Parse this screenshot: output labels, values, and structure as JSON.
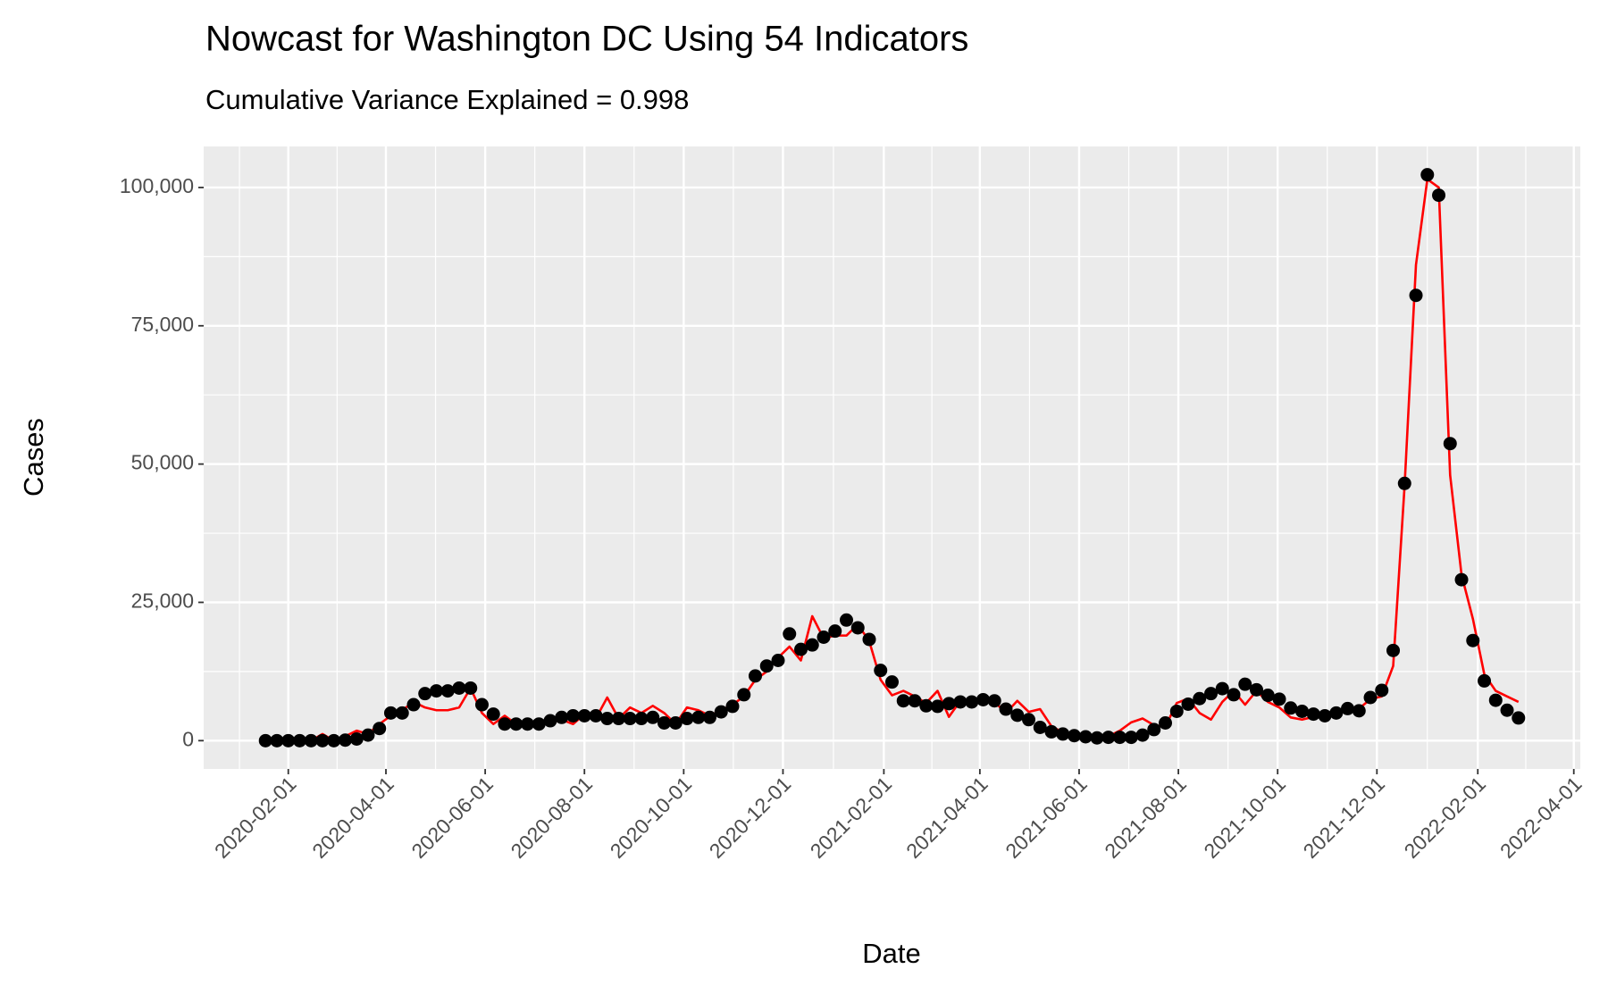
{
  "chart_data": {
    "type": "line",
    "title": "Nowcast for Washington DC Using 54 Indicators",
    "subtitle": "Cumulative Variance Explained = 0.998",
    "x_label": "Date",
    "y_label": "Cases",
    "x": [
      "2020-01-18",
      "2020-01-25",
      "2020-02-01",
      "2020-02-08",
      "2020-02-15",
      "2020-02-22",
      "2020-02-29",
      "2020-03-07",
      "2020-03-14",
      "2020-03-21",
      "2020-03-28",
      "2020-04-04",
      "2020-04-11",
      "2020-04-18",
      "2020-04-25",
      "2020-05-02",
      "2020-05-09",
      "2020-05-16",
      "2020-05-23",
      "2020-05-30",
      "2020-06-06",
      "2020-06-13",
      "2020-06-20",
      "2020-06-27",
      "2020-07-04",
      "2020-07-11",
      "2020-07-18",
      "2020-07-25",
      "2020-08-01",
      "2020-08-08",
      "2020-08-15",
      "2020-08-22",
      "2020-08-29",
      "2020-09-05",
      "2020-09-12",
      "2020-09-19",
      "2020-09-26",
      "2020-10-03",
      "2020-10-10",
      "2020-10-17",
      "2020-10-24",
      "2020-10-31",
      "2020-11-07",
      "2020-11-14",
      "2020-11-21",
      "2020-11-28",
      "2020-12-05",
      "2020-12-12",
      "2020-12-19",
      "2020-12-26",
      "2021-01-02",
      "2021-01-09",
      "2021-01-16",
      "2021-01-23",
      "2021-01-30",
      "2021-02-06",
      "2021-02-13",
      "2021-02-20",
      "2021-02-27",
      "2021-03-06",
      "2021-03-13",
      "2021-03-20",
      "2021-03-27",
      "2021-04-03",
      "2021-04-10",
      "2021-04-17",
      "2021-04-24",
      "2021-05-01",
      "2021-05-08",
      "2021-05-15",
      "2021-05-22",
      "2021-05-29",
      "2021-06-05",
      "2021-06-12",
      "2021-06-19",
      "2021-06-26",
      "2021-07-03",
      "2021-07-10",
      "2021-07-17",
      "2021-07-24",
      "2021-07-31",
      "2021-08-07",
      "2021-08-14",
      "2021-08-21",
      "2021-08-28",
      "2021-09-04",
      "2021-09-11",
      "2021-09-18",
      "2021-09-25",
      "2021-10-02",
      "2021-10-09",
      "2021-10-16",
      "2021-10-23",
      "2021-10-30",
      "2021-11-06",
      "2021-11-13",
      "2021-11-20",
      "2021-11-27",
      "2021-12-04",
      "2021-12-11",
      "2021-12-18",
      "2021-12-25",
      "2022-01-01",
      "2022-01-08",
      "2022-01-15",
      "2022-01-22",
      "2022-01-29",
      "2022-02-05",
      "2022-02-12",
      "2022-02-19",
      "2022-02-26"
    ],
    "series": [
      {
        "type": "line",
        "color": "#ff0000",
        "values": [
          0,
          200,
          300,
          500,
          0,
          1200,
          0,
          800,
          1800,
          1200,
          3000,
          4500,
          5500,
          7000,
          6000,
          5500,
          5500,
          6000,
          9500,
          5000,
          3000,
          4500,
          3000,
          2800,
          3000,
          3200,
          3800,
          3000,
          4800,
          4000,
          7800,
          4000,
          6000,
          5000,
          6300,
          5000,
          3000,
          6000,
          5500,
          4500,
          5500,
          6500,
          8000,
          11000,
          12500,
          15000,
          17000,
          14500,
          22500,
          18500,
          19000,
          19000,
          21000,
          18000,
          11000,
          8200,
          9000,
          8000,
          6800,
          9000,
          4300,
          7200,
          6500,
          7600,
          7000,
          5000,
          7200,
          5200,
          5700,
          2600,
          1500,
          1100,
          800,
          1000,
          800,
          1800,
          3300,
          4000,
          2800,
          2500,
          6800,
          7600,
          5000,
          3800,
          7000,
          9000,
          6500,
          9000,
          7000,
          6000,
          4200,
          3800,
          4300,
          5000,
          5000,
          5500,
          5800,
          7500,
          8000,
          13500,
          46000,
          86000,
          101500,
          100000,
          48000,
          30000,
          22000,
          12000,
          9000,
          8000,
          7000
        ]
      },
      {
        "type": "scatter",
        "color": "#000000",
        "values": [
          0,
          0,
          0,
          0,
          0,
          0,
          0,
          100,
          300,
          1000,
          2200,
          5000,
          5000,
          6500,
          8500,
          9000,
          9000,
          9500,
          9500,
          6500,
          4800,
          3000,
          3000,
          3000,
          3000,
          3600,
          4200,
          4500,
          4500,
          4500,
          4000,
          4000,
          4000,
          4000,
          4200,
          3200,
          3200,
          4000,
          4200,
          4200,
          5200,
          6200,
          8300,
          11700,
          13500,
          14500,
          19300,
          16500,
          17300,
          18700,
          19800,
          21800,
          20400,
          18300,
          12700,
          10600,
          7200,
          7200,
          6300,
          6200,
          6700,
          7000,
          7000,
          7400,
          7200,
          5700,
          4600,
          3800,
          2400,
          1600,
          1200,
          900,
          700,
          500,
          600,
          600,
          600,
          1000,
          2000,
          3200,
          5300,
          6600,
          7600,
          8500,
          9400,
          8300,
          10200,
          9200,
          8200,
          7500,
          5900,
          5300,
          4800,
          4500,
          5000,
          5800,
          5400,
          7800,
          9100,
          16300,
          46500,
          80500,
          102300,
          98600,
          53700,
          29100,
          18100,
          10800,
          7300,
          5500,
          4100
        ]
      }
    ],
    "xlim": [
      "2019-12-11",
      "2022-04-05"
    ],
    "xticks": [
      "2020-02-01",
      "2020-04-01",
      "2020-06-01",
      "2020-08-01",
      "2020-10-01",
      "2020-12-01",
      "2021-02-01",
      "2021-04-01",
      "2021-06-01",
      "2021-08-01",
      "2021-10-01",
      "2021-12-01",
      "2022-02-01",
      "2022-04-01"
    ],
    "ylim": [
      -5115,
      107415
    ],
    "yticks": [
      0,
      {
        "value": 25000,
        "label": "25,000"
      },
      {
        "value": 50000,
        "label": "50,000"
      },
      {
        "value": 75000,
        "label": "75,000"
      },
      {
        "value": 100000,
        "label": "100,000"
      }
    ],
    "grid": true
  }
}
